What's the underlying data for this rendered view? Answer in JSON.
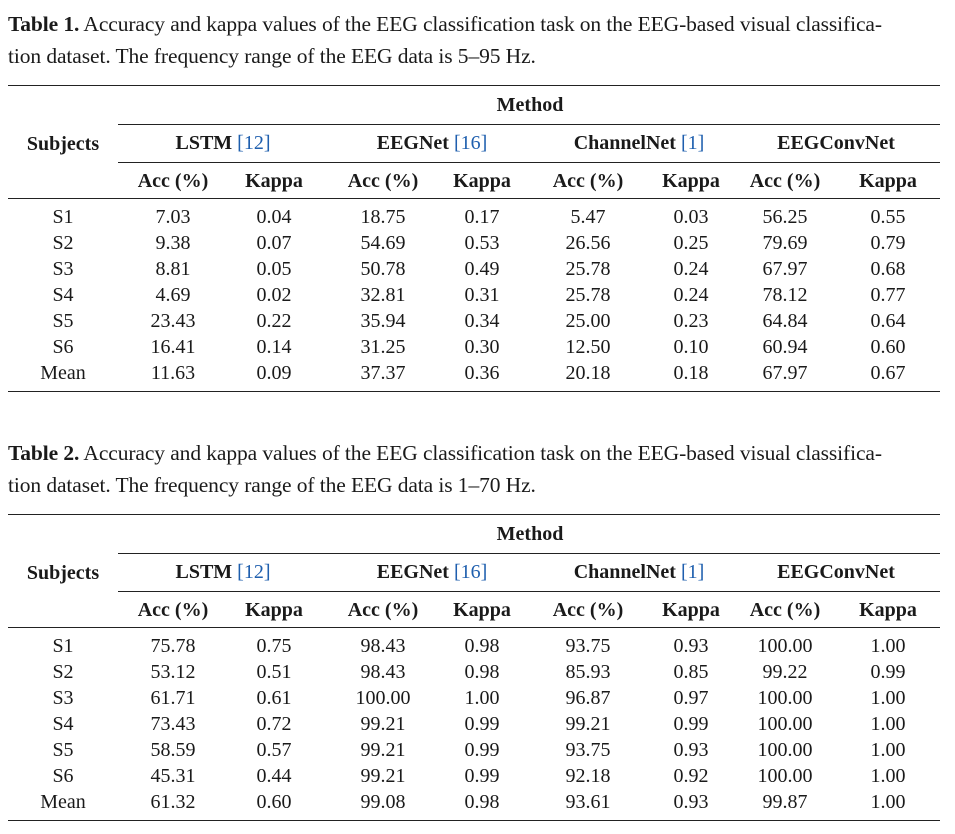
{
  "tables": [
    {
      "label": "Table 1.",
      "caption_line1": "Accuracy and kappa values of the EEG classification task on the EEG-based visual classifica-",
      "caption_line2": "tion dataset. The frequency range of the EEG data is 5–95 Hz.",
      "method_header": "Method",
      "subjects_header": "Subjects",
      "methods": [
        {
          "name": "LSTM",
          "ref": "[12]"
        },
        {
          "name": "EEGNet",
          "ref": "[16]"
        },
        {
          "name": "ChannelNet",
          "ref": "[1]"
        },
        {
          "name": "EEGConvNet",
          "ref": ""
        }
      ],
      "acc_header": "Acc (%)",
      "kappa_header": "Kappa",
      "rows": [
        {
          "subject": "S1",
          "values": [
            "7.03",
            "0.04",
            "18.75",
            "0.17",
            "5.47",
            "0.03",
            "56.25",
            "0.55"
          ]
        },
        {
          "subject": "S2",
          "values": [
            "9.38",
            "0.07",
            "54.69",
            "0.53",
            "26.56",
            "0.25",
            "79.69",
            "0.79"
          ]
        },
        {
          "subject": "S3",
          "values": [
            "8.81",
            "0.05",
            "50.78",
            "0.49",
            "25.78",
            "0.24",
            "67.97",
            "0.68"
          ]
        },
        {
          "subject": "S4",
          "values": [
            "4.69",
            "0.02",
            "32.81",
            "0.31",
            "25.78",
            "0.24",
            "78.12",
            "0.77"
          ]
        },
        {
          "subject": "S5",
          "values": [
            "23.43",
            "0.22",
            "35.94",
            "0.34",
            "25.00",
            "0.23",
            "64.84",
            "0.64"
          ]
        },
        {
          "subject": "S6",
          "values": [
            "16.41",
            "0.14",
            "31.25",
            "0.30",
            "12.50",
            "0.10",
            "60.94",
            "0.60"
          ]
        },
        {
          "subject": "Mean",
          "values": [
            "11.63",
            "0.09",
            "37.37",
            "0.36",
            "20.18",
            "0.18",
            "67.97",
            "0.67"
          ]
        }
      ]
    },
    {
      "label": "Table 2.",
      "caption_line1": "Accuracy and kappa values of the EEG classification task on the EEG-based visual classifica-",
      "caption_line2": "tion dataset. The frequency range of the EEG data is 1–70 Hz.",
      "method_header": "Method",
      "subjects_header": "Subjects",
      "methods": [
        {
          "name": "LSTM",
          "ref": "[12]"
        },
        {
          "name": "EEGNet",
          "ref": "[16]"
        },
        {
          "name": "ChannelNet",
          "ref": "[1]"
        },
        {
          "name": "EEGConvNet",
          "ref": ""
        }
      ],
      "acc_header": "Acc (%)",
      "kappa_header": "Kappa",
      "rows": [
        {
          "subject": "S1",
          "values": [
            "75.78",
            "0.75",
            "98.43",
            "0.98",
            "93.75",
            "0.93",
            "100.00",
            "1.00"
          ]
        },
        {
          "subject": "S2",
          "values": [
            "53.12",
            "0.51",
            "98.43",
            "0.98",
            "85.93",
            "0.85",
            "99.22",
            "0.99"
          ]
        },
        {
          "subject": "S3",
          "values": [
            "61.71",
            "0.61",
            "100.00",
            "1.00",
            "96.87",
            "0.97",
            "100.00",
            "1.00"
          ]
        },
        {
          "subject": "S4",
          "values": [
            "73.43",
            "0.72",
            "99.21",
            "0.99",
            "99.21",
            "0.99",
            "100.00",
            "1.00"
          ]
        },
        {
          "subject": "S5",
          "values": [
            "58.59",
            "0.57",
            "99.21",
            "0.99",
            "93.75",
            "0.93",
            "100.00",
            "1.00"
          ]
        },
        {
          "subject": "S6",
          "values": [
            "45.31",
            "0.44",
            "99.21",
            "0.99",
            "92.18",
            "0.92",
            "100.00",
            "1.00"
          ]
        },
        {
          "subject": "Mean",
          "values": [
            "61.32",
            "0.60",
            "99.08",
            "0.98",
            "93.61",
            "0.93",
            "99.87",
            "1.00"
          ]
        }
      ]
    }
  ],
  "colors": {
    "reference_link": "#1f5fae",
    "text": "#1a1a1a"
  }
}
